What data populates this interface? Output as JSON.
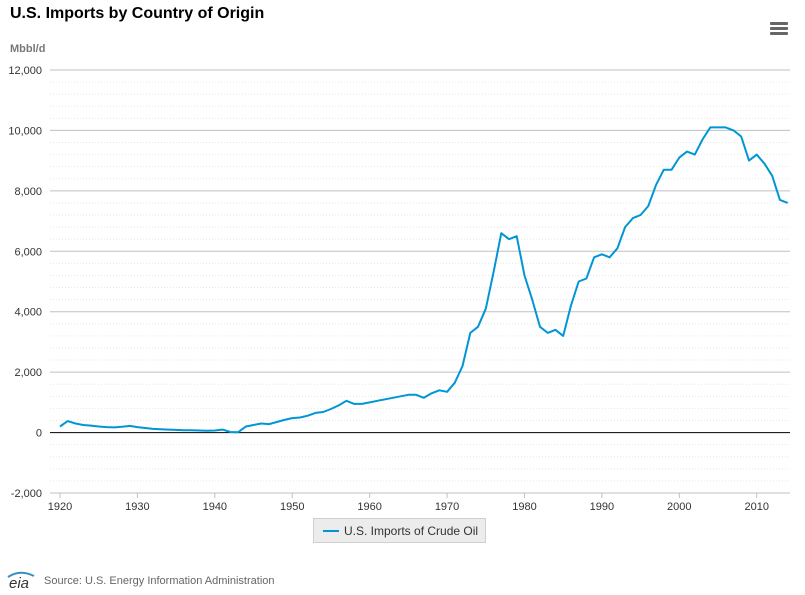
{
  "header": {
    "title": "U.S. Imports by Country of Origin",
    "unit": "Mbbl/d",
    "menu_icon": "hamburger-menu-icon"
  },
  "legend": {
    "label": "U.S. Imports of Crude Oil"
  },
  "footer": {
    "logo_text": "eia",
    "source": "Source: U.S. Energy Information Administration"
  },
  "colors": {
    "series": "#0096d6",
    "grid": "#c0c0c0",
    "zero_line": "#000000"
  },
  "chart_data": {
    "type": "line",
    "title": "U.S. Imports by Country of Origin",
    "ylabel": "Mbbl/d",
    "xlim": [
      1920,
      2014.3
    ],
    "ylim": [
      -2000,
      12000
    ],
    "yticks": [
      -2000,
      0,
      2000,
      4000,
      6000,
      8000,
      10000,
      12000
    ],
    "ytick_labels": [
      "-2,000",
      "0",
      "2,000",
      "4,000",
      "6,000",
      "8,000",
      "10,000",
      "12,000"
    ],
    "xticks": [
      1920,
      1930,
      1940,
      1950,
      1960,
      1970,
      1980,
      1990,
      2000,
      2010
    ],
    "xtick_labels": [
      "1920",
      "1930",
      "1940",
      "1950",
      "1960",
      "1970",
      "1980",
      "1990",
      "2000",
      "2010"
    ],
    "grid": true,
    "legend_position": "bottom-center",
    "series": [
      {
        "name": "U.S. Imports of Crude Oil",
        "x": [
          1920,
          1921,
          1922,
          1923,
          1924,
          1925,
          1926,
          1927,
          1928,
          1929,
          1930,
          1931,
          1932,
          1933,
          1934,
          1935,
          1936,
          1937,
          1938,
          1939,
          1940,
          1941,
          1942,
          1943,
          1944,
          1945,
          1946,
          1947,
          1948,
          1949,
          1950,
          1951,
          1952,
          1953,
          1954,
          1955,
          1956,
          1957,
          1958,
          1959,
          1960,
          1961,
          1962,
          1963,
          1964,
          1965,
          1966,
          1967,
          1968,
          1969,
          1970,
          1971,
          1972,
          1973,
          1974,
          1975,
          1976,
          1977,
          1978,
          1979,
          1980,
          1981,
          1982,
          1983,
          1984,
          1985,
          1986,
          1987,
          1988,
          1989,
          1990,
          1991,
          1992,
          1993,
          1994,
          1995,
          1996,
          1997,
          1998,
          1999,
          2000,
          2001,
          2002,
          2003,
          2004,
          2005,
          2006,
          2007,
          2008,
          2009,
          2010,
          2011,
          2012,
          2013,
          2014
        ],
        "values": [
          200,
          380,
          300,
          250,
          230,
          200,
          180,
          170,
          190,
          220,
          180,
          150,
          120,
          110,
          100,
          90,
          80,
          80,
          70,
          60,
          70,
          100,
          20,
          10,
          200,
          250,
          300,
          280,
          350,
          420,
          480,
          500,
          560,
          650,
          680,
          780,
          900,
          1050,
          950,
          950,
          1000,
          1050,
          1100,
          1150,
          1200,
          1250,
          1250,
          1150,
          1300,
          1400,
          1350,
          1650,
          2200,
          3300,
          3500,
          4100,
          5300,
          6600,
          6400,
          6500,
          5200,
          4400,
          3500,
          3300,
          3400,
          3200,
          4200,
          5000,
          5100,
          5800,
          5900,
          5800,
          6100,
          6800,
          7100,
          7200,
          7500,
          8200,
          8700,
          8700,
          9100,
          9300,
          9200,
          9700,
          10100,
          10100,
          10100,
          10000,
          9800,
          9000,
          9200,
          8900,
          8500,
          7700,
          7600
        ]
      }
    ]
  }
}
